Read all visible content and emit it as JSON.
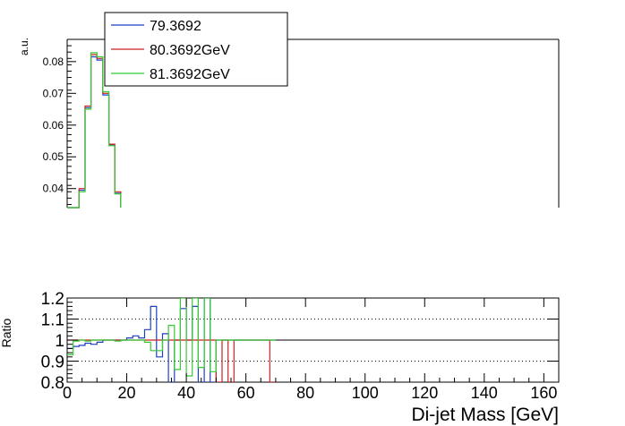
{
  "chart_data": [
    {
      "panel": "main",
      "type": "line",
      "ylabel": "a.u.",
      "ylim": [
        0.034,
        0.087
      ],
      "xlim": [
        0,
        165
      ],
      "yticks": [
        "0.04",
        "0.05",
        "0.06",
        "0.07",
        "0.08"
      ],
      "legend": {
        "placement": "top-left",
        "entries": [
          "79.3692",
          "80.3692GeV",
          "81.3692GeV"
        ]
      },
      "bin_edges": [
        0,
        2,
        4,
        6,
        8,
        10,
        12,
        14,
        16,
        18
      ],
      "series": [
        {
          "name": "79.3692",
          "color": "#1f3fbf",
          "values": [
            0.033,
            0.033,
            0.0395,
            0.0655,
            0.0815,
            0.0805,
            0.0695,
            0.0538,
            0.0385
          ]
        },
        {
          "name": "80.3692GeV",
          "color": "#cc2222",
          "values": [
            0.033,
            0.033,
            0.04,
            0.066,
            0.0822,
            0.081,
            0.07,
            0.054,
            0.039
          ]
        },
        {
          "name": "81.3692GeV",
          "color": "#33cc33",
          "values": [
            0.033,
            0.033,
            0.039,
            0.065,
            0.0828,
            0.0815,
            0.0705,
            0.0535,
            0.0383
          ]
        }
      ]
    },
    {
      "panel": "ratio",
      "type": "line",
      "xlabel": "Di-jet Mass [GeV]",
      "ylabel": "Ratio",
      "ylim": [
        0.8,
        1.2
      ],
      "xlim": [
        0,
        165
      ],
      "yticks": [
        "0.8",
        "0.9",
        "1",
        "1.1",
        "1.2"
      ],
      "xticks": [
        "0",
        "20",
        "40",
        "60",
        "80",
        "100",
        "120",
        "140",
        "160"
      ],
      "reference_lines": [
        0.9,
        1.0,
        1.1
      ],
      "bin_edges": [
        0,
        2,
        4,
        6,
        8,
        10,
        12,
        14,
        16,
        18,
        20,
        22,
        24,
        26,
        28,
        30,
        32,
        34,
        36,
        38,
        40,
        42,
        44,
        46,
        48,
        50,
        52,
        54,
        56,
        58,
        60,
        62,
        64,
        66,
        68,
        70
      ],
      "series": [
        {
          "name": "79.3692",
          "color": "#1f3fbf",
          "values": [
            0.96,
            0.97,
            0.975,
            0.985,
            0.98,
            0.99,
            1.0,
            1.0,
            1.0,
            1.0,
            1.01,
            1.02,
            1.01,
            1.05,
            1.16,
            0.92,
            1.03,
            0.8,
            1.0,
            1.15,
            1.0,
            1.16,
            0.8,
            1.2,
            0.8,
            1.0,
            1.0,
            1.0,
            1.0,
            1.0,
            1.0,
            1.0,
            1.0,
            1.0,
            1.0
          ]
        },
        {
          "name": "80.3692GeV",
          "color": "#cc2222",
          "values": [
            1.0,
            1.0,
            1.0,
            1.0,
            1.0,
            1.0,
            1.0,
            1.0,
            1.0,
            1.0,
            1.0,
            1.0,
            1.0,
            1.0,
            1.0,
            1.0,
            1.0,
            1.0,
            1.0,
            1.0,
            1.0,
            1.0,
            1.0,
            1.0,
            1.0,
            0.8,
            1.0,
            0.8,
            1.0,
            1.0,
            1.0,
            1.0,
            1.0,
            1.0,
            0.8
          ]
        },
        {
          "name": "81.3692GeV",
          "color": "#33cc33",
          "values": [
            0.93,
            0.995,
            1.0,
            0.995,
            1.0,
            1.0,
            1.0,
            1.0,
            0.995,
            1.0,
            1.0,
            1.0,
            1.0,
            0.99,
            0.95,
            0.95,
            1.0,
            1.07,
            0.86,
            1.2,
            0.83,
            1.2,
            0.87,
            1.2,
            0.85,
            1.0,
            1.0,
            1.0,
            1.0,
            1.0,
            1.0,
            1.0,
            1.0,
            1.0,
            1.0
          ]
        }
      ]
    }
  ]
}
